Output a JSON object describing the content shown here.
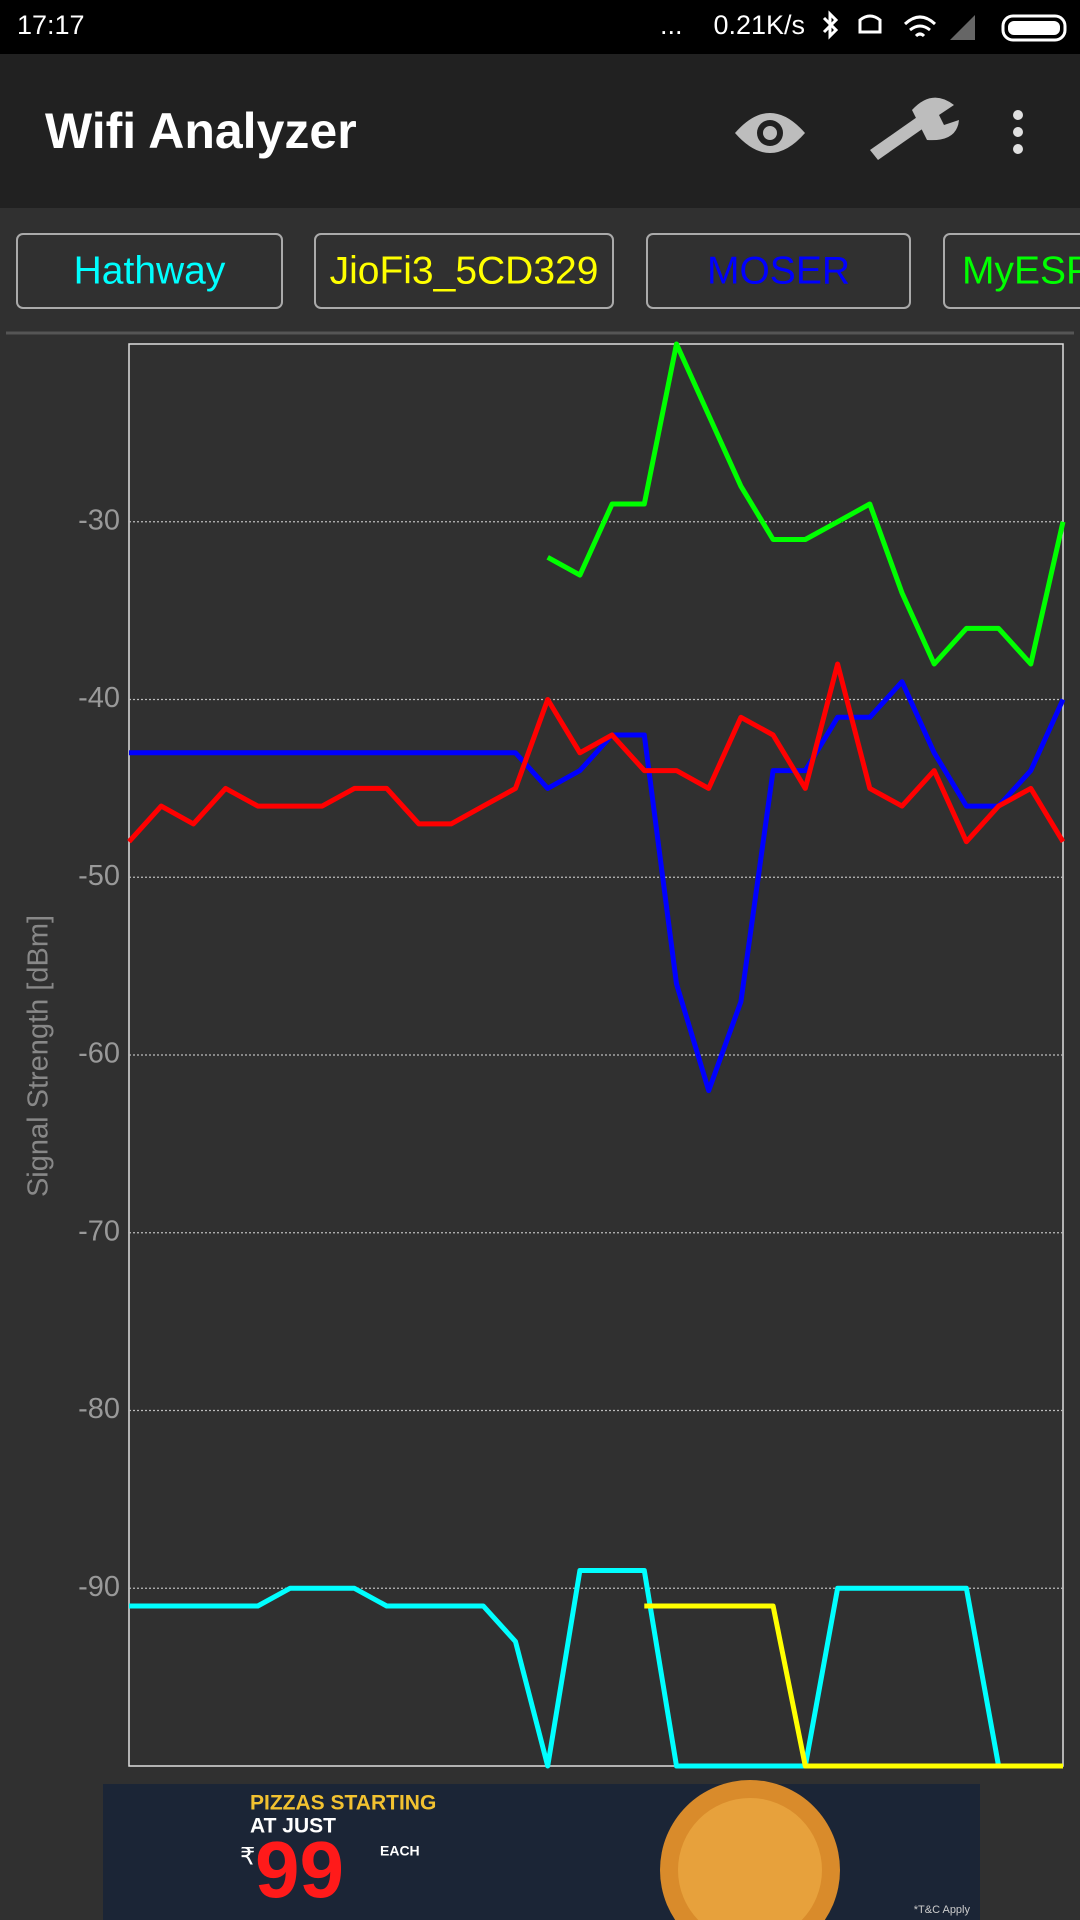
{
  "status_bar": {
    "time": "17:17",
    "speed": "0.21K/s"
  },
  "app_bar": {
    "title": "Wifi Analyzer"
  },
  "chart_data": {
    "type": "line",
    "y_label": "Signal Strength [dBm]",
    "ylim": [
      -100,
      -20
    ],
    "yticks": [
      -30,
      -40,
      -50,
      -60,
      -70,
      -80,
      -90
    ],
    "grid": true,
    "series": [
      {
        "name": "Hathway",
        "color": "#00ffff",
        "values": [
          -91,
          -91,
          -91,
          -91,
          -91,
          -90,
          -90,
          -90,
          -91,
          -91,
          -91,
          -91,
          -93,
          -100,
          -89,
          -89,
          -89,
          -100,
          -100,
          -100,
          -100,
          -100,
          -90,
          -90,
          -90,
          -90,
          -90,
          -100,
          -100,
          -100
        ]
      },
      {
        "name": "JioFi3_5CD329",
        "color": "#ffff00",
        "values": [
          null,
          null,
          null,
          null,
          null,
          null,
          null,
          null,
          null,
          null,
          null,
          null,
          null,
          null,
          null,
          null,
          -91,
          -91,
          -91,
          -91,
          -91,
          -100,
          -100,
          -100,
          -100,
          -100,
          -100,
          -100,
          -100,
          -100
        ]
      },
      {
        "name": "MOSER",
        "color": "#0000ff",
        "values": [
          -43,
          -43,
          -43,
          -43,
          -43,
          -43,
          -43,
          -43,
          -43,
          -43,
          -43,
          -43,
          -43,
          -45,
          -44,
          -42,
          -42,
          -56,
          -62,
          -57,
          -44,
          -44,
          -41,
          -41,
          -39,
          -43,
          -46,
          -46,
          -44,
          -40
        ]
      },
      {
        "name": "MyESP",
        "color": "#00ff00",
        "values": [
          null,
          null,
          null,
          null,
          null,
          null,
          null,
          null,
          null,
          null,
          null,
          null,
          null,
          -32,
          -33,
          -29,
          -29,
          -20,
          -24,
          -28,
          -31,
          -31,
          -30,
          -29,
          -34,
          -38,
          -36,
          -36,
          -38,
          -30
        ]
      },
      {
        "color": "#ff0000",
        "values": [
          -48,
          -46,
          -47,
          -45,
          -46,
          -46,
          -46,
          -45,
          -45,
          -47,
          -47,
          -46,
          -45,
          -40,
          -43,
          -42,
          -44,
          -44,
          -45,
          -41,
          -42,
          -45,
          -38,
          -45,
          -46,
          -44,
          -48,
          -46,
          -45,
          -48
        ]
      }
    ]
  },
  "ad": {
    "line1": "PIZZAS STARTING",
    "line2": "AT JUST",
    "currency": "₹",
    "price": "99",
    "unit": "EACH",
    "terms": "*T&C Apply"
  }
}
